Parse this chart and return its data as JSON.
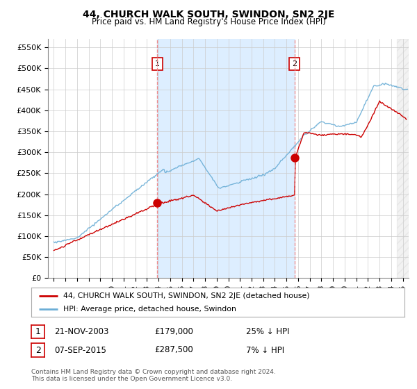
{
  "title": "44, CHURCH WALK SOUTH, SWINDON, SN2 2JE",
  "subtitle": "Price paid vs. HM Land Registry's House Price Index (HPI)",
  "ylabel_ticks": [
    "£0",
    "£50K",
    "£100K",
    "£150K",
    "£200K",
    "£250K",
    "£300K",
    "£350K",
    "£400K",
    "£450K",
    "£500K",
    "£550K"
  ],
  "ytick_values": [
    0,
    50000,
    100000,
    150000,
    200000,
    250000,
    300000,
    350000,
    400000,
    450000,
    500000,
    550000
  ],
  "ylim": [
    0,
    570000
  ],
  "xlim_start": 1994.5,
  "xlim_end": 2025.5,
  "purchase1_year": 2003.9,
  "purchase1_price": 179000,
  "purchase2_year": 2015.7,
  "purchase2_price": 287500,
  "hpi_color": "#6baed6",
  "price_color": "#CC0000",
  "shade_color": "#ddeeff",
  "vline_color": "#ee8888",
  "legend_label1": "44, CHURCH WALK SOUTH, SWINDON, SN2 2JE (detached house)",
  "legend_label2": "HPI: Average price, detached house, Swindon",
  "annotation1_label": "1",
  "annotation1_date": "21-NOV-2003",
  "annotation1_price": "£179,000",
  "annotation1_hpi": "25% ↓ HPI",
  "annotation2_label": "2",
  "annotation2_date": "07-SEP-2015",
  "annotation2_price": "£287,500",
  "annotation2_hpi": "7% ↓ HPI",
  "footer": "Contains HM Land Registry data © Crown copyright and database right 2024.\nThis data is licensed under the Open Government Licence v3.0.",
  "background_color": "#ffffff",
  "grid_color": "#cccccc"
}
